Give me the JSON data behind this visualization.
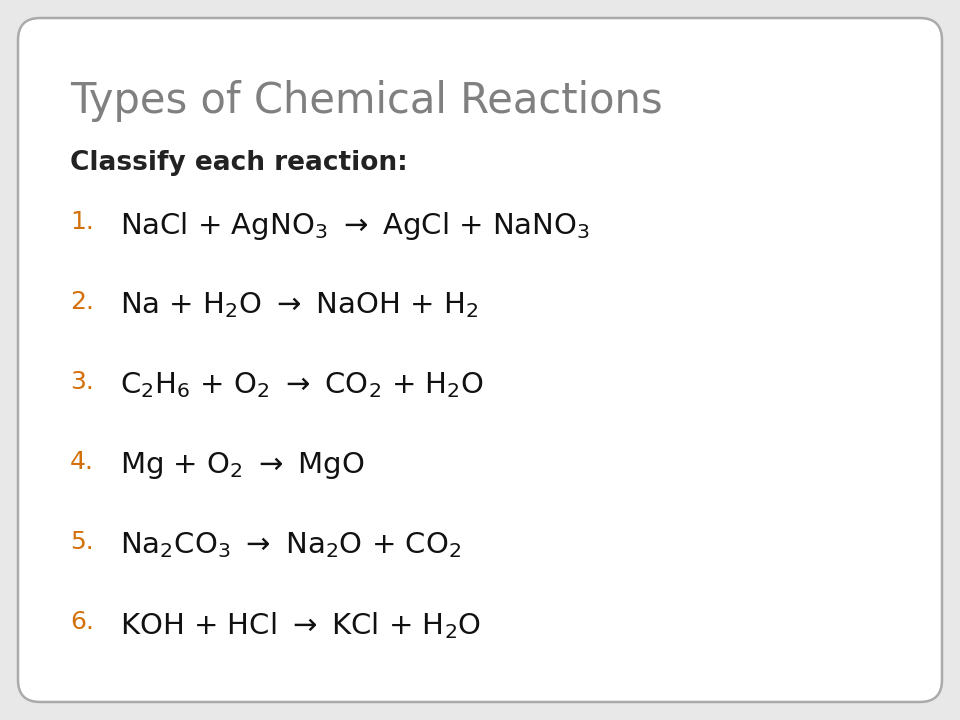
{
  "title": "Types of Chemical Reactions",
  "subtitle": "Classify each reaction:",
  "title_color": "#808080",
  "subtitle_color": "#222222",
  "number_color": "#D4700A",
  "equation_color": "#111111",
  "background_color": "#e8e8e8",
  "box_color": "#ffffff",
  "border_color": "#aaaaaa",
  "title_fontsize": 30,
  "subtitle_fontsize": 19,
  "eq_fontsize": 21,
  "num_fontsize": 18,
  "eq_latex": [
    "NaCl + AgNO$_3$ $\\rightarrow$ AgCl + NaNO$_3$",
    "Na + H$_2$O $\\rightarrow$ NaOH + H$_2$",
    "C$_2$H$_6$ + O$_2$ $\\rightarrow$ CO$_2$ + H$_2$O",
    "Mg + O$_2$ $\\rightarrow$ MgO",
    "Na$_2$CO$_3$ $\\rightarrow$ Na$_2$O + CO$_2$",
    "KOH + HCl $\\rightarrow$ KCl + H$_2$O"
  ],
  "numbers": [
    "1.",
    "2.",
    "3.",
    "4.",
    "5.",
    "6."
  ]
}
